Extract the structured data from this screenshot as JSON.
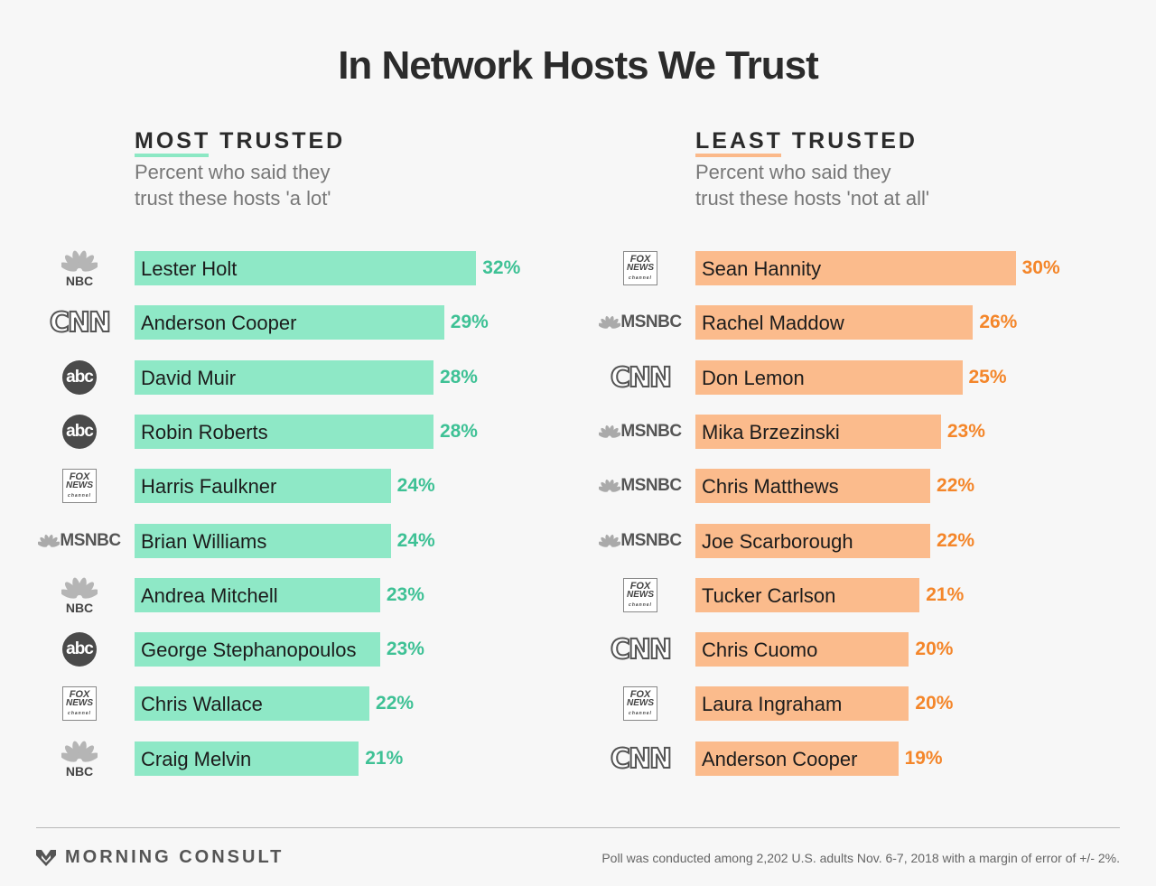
{
  "title": "In Network Hosts We Trust",
  "panels": {
    "most": {
      "heading_first": "MOST",
      "heading_rest": "TRUSTED",
      "sub_line1": "Percent who said they",
      "sub_line2": "trust these hosts 'a lot'",
      "color": "#8ee8c6",
      "label_color": "#3ec195"
    },
    "least": {
      "heading_first": "LEAST",
      "heading_rest": "TRUSTED",
      "sub_line1": "Percent who said they",
      "sub_line2": "trust these hosts 'not at all'",
      "color": "#fbbb8c",
      "label_color": "#f4862a"
    }
  },
  "network_logos": {
    "NBC": {
      "text": "NBC",
      "icon": "nbc-peacock-icon"
    },
    "CNN": {
      "text": "CNN",
      "icon": "cnn-logo-icon"
    },
    "abc": {
      "text": "abc",
      "icon": "abc-logo-icon"
    },
    "FOX": {
      "text1": "FOX",
      "text2": "NEWS",
      "text3": "channel",
      "icon": "fox-news-logo-icon"
    },
    "MSNBC": {
      "text": "MSNBC",
      "icon": "msnbc-peacock-icon"
    }
  },
  "chart_data": [
    {
      "type": "bar",
      "orientation": "horizontal",
      "title": "MOST TRUSTED",
      "subtitle": "Percent who said they trust these hosts 'a lot'",
      "unit": "%",
      "categories": [
        "Lester Holt",
        "Anderson Cooper",
        "David Muir",
        "Robin Roberts",
        "Harris Faulkner",
        "Brian Williams",
        "Andrea Mitchell",
        "George Stephanopoulos",
        "Chris Wallace",
        "Craig Melvin"
      ],
      "networks": [
        "NBC",
        "CNN",
        "abc",
        "abc",
        "FOX",
        "MSNBC",
        "NBC",
        "abc",
        "FOX",
        "NBC"
      ],
      "values": [
        32,
        29,
        28,
        28,
        24,
        24,
        23,
        23,
        22,
        21
      ],
      "labels": [
        "32%",
        "29%",
        "28%",
        "28%",
        "24%",
        "24%",
        "23%",
        "23%",
        "22%",
        "21%"
      ]
    },
    {
      "type": "bar",
      "orientation": "horizontal",
      "title": "LEAST TRUSTED",
      "subtitle": "Percent who said they trust these hosts 'not at all'",
      "unit": "%",
      "categories": [
        "Sean Hannity",
        "Rachel Maddow",
        "Don Lemon",
        "Mika Brzezinski",
        "Chris Matthews",
        "Joe Scarborough",
        "Tucker Carlson",
        "Chris Cuomo",
        "Laura Ingraham",
        "Anderson Cooper"
      ],
      "networks": [
        "FOX",
        "MSNBC",
        "CNN",
        "MSNBC",
        "MSNBC",
        "MSNBC",
        "FOX",
        "CNN",
        "FOX",
        "CNN"
      ],
      "values": [
        30,
        26,
        25,
        23,
        22,
        22,
        21,
        20,
        20,
        19
      ],
      "labels": [
        "30%",
        "26%",
        "25%",
        "23%",
        "22%",
        "22%",
        "21%",
        "20%",
        "20%",
        "19%"
      ]
    }
  ],
  "footer": {
    "brand": "MORNING CONSULT",
    "brand_icon": "morning-consult-logo-icon",
    "note": "Poll was conducted among 2,202 U.S. adults Nov. 6-7, 2018 with a margin of error of +/- 2%."
  }
}
